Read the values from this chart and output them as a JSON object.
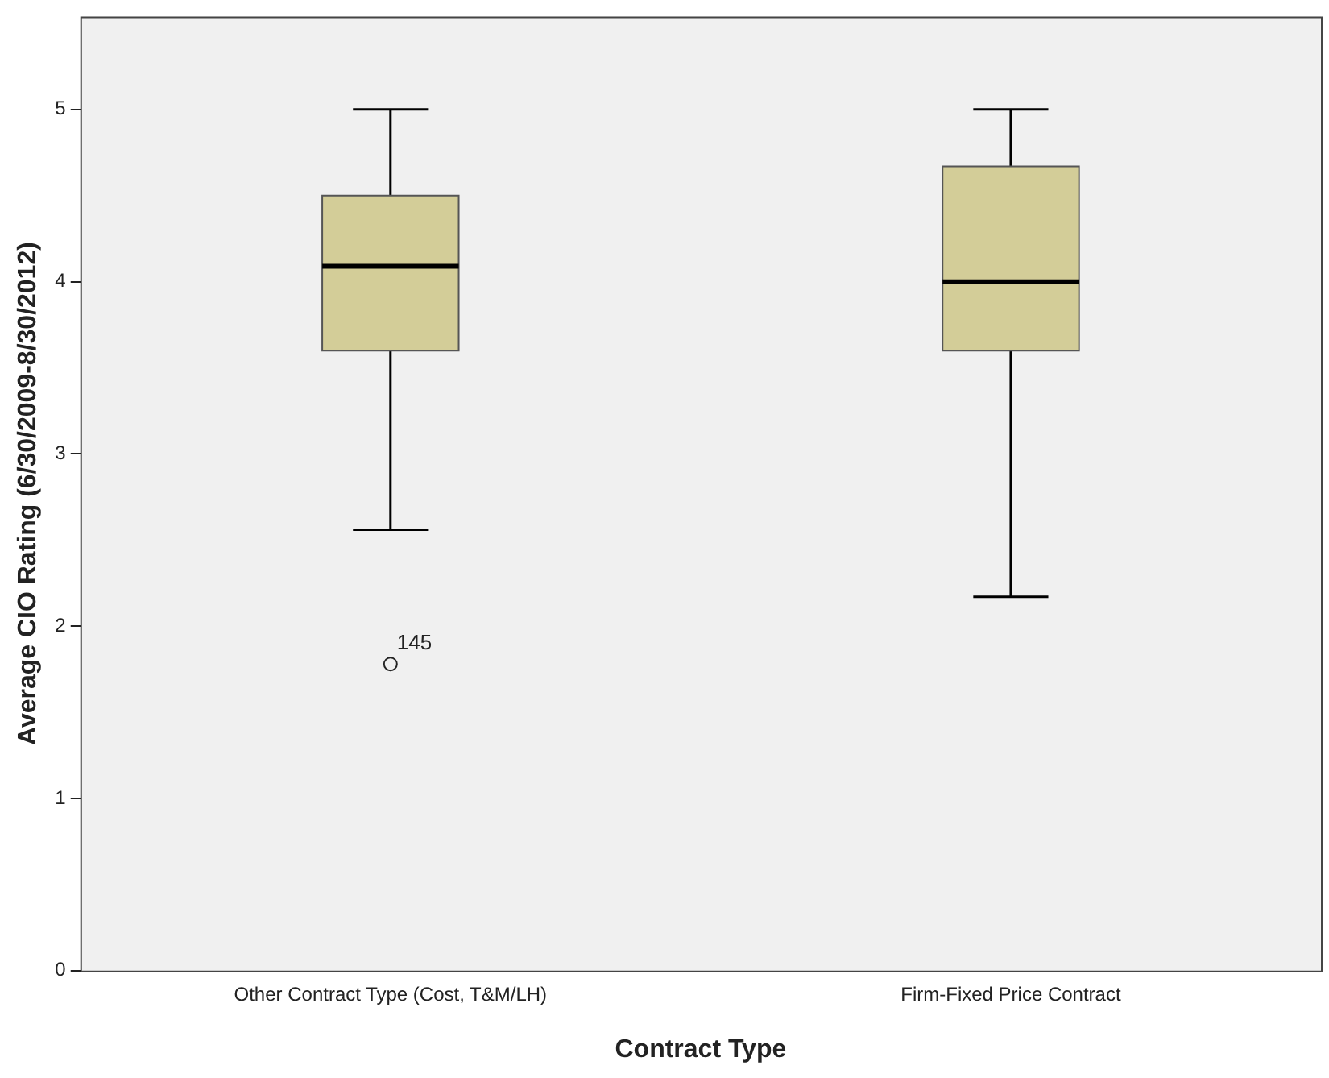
{
  "chart_data": {
    "type": "box",
    "xlabel": "Contract Type",
    "ylabel": "Average CIO Rating (6/30/2009-8/30/2012)",
    "categories": [
      "Other Contract Type (Cost, T&M/LH)",
      "Firm-Fixed Price Contract"
    ],
    "boxes": [
      {
        "low": 2.56,
        "q1": 3.6,
        "median": 4.09,
        "q3": 4.5,
        "high": 5,
        "outliers": [
          1.78
        ]
      },
      {
        "low": 2.17,
        "q1": 3.6,
        "median": 4.0,
        "q3": 4.67,
        "high": 5
      }
    ],
    "color": "#d3cd98",
    "ylim": [
      0,
      5.54
    ],
    "yticks": [
      0,
      1,
      2,
      3,
      4,
      5
    ],
    "annotations": [
      "145"
    ],
    "grid": false,
    "legend": false
  }
}
